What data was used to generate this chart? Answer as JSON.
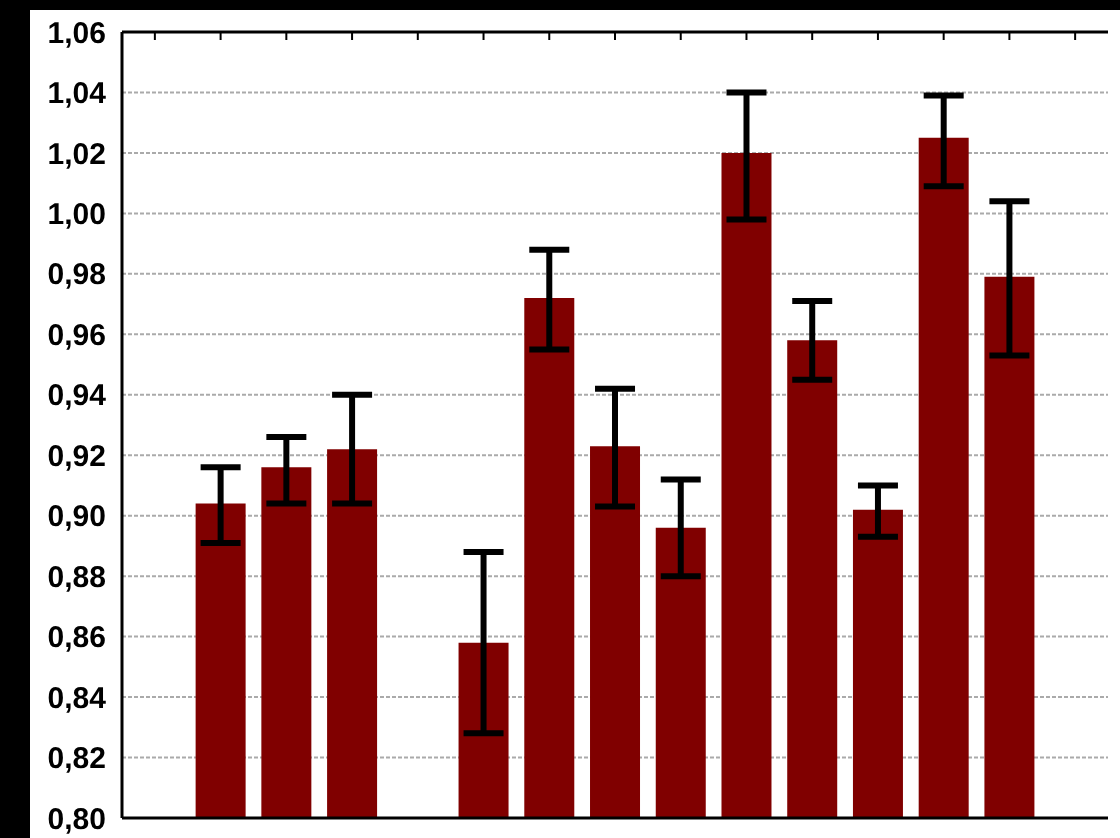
{
  "chart_data": {
    "type": "bar",
    "categories": [
      null,
      null,
      null,
      null,
      null,
      null,
      null,
      null,
      null,
      null,
      null,
      null,
      null,
      null,
      null
    ],
    "values": [
      null,
      0.904,
      0.916,
      0.922,
      null,
      0.858,
      0.972,
      0.923,
      0.896,
      1.02,
      0.958,
      0.902,
      1.025,
      0.979,
      null
    ],
    "errors": [
      null,
      [
        0.891,
        0.916
      ],
      [
        0.904,
        0.926
      ],
      [
        0.904,
        0.94
      ],
      null,
      [
        0.828,
        0.888
      ],
      [
        0.955,
        0.988
      ],
      [
        0.903,
        0.942
      ],
      [
        0.88,
        0.912
      ],
      [
        0.998,
        1.04
      ],
      [
        0.945,
        0.971
      ],
      [
        0.893,
        0.91
      ],
      [
        1.009,
        1.039
      ],
      [
        0.953,
        1.004
      ],
      null
    ],
    "color": "#800000",
    "ylim": [
      0.8,
      1.06
    ],
    "yticks": [
      {
        "value": 0.8,
        "label": "0,80"
      },
      {
        "value": 0.82,
        "label": "0,82"
      },
      {
        "value": 0.84,
        "label": "0,84"
      },
      {
        "value": 0.86,
        "label": "0,86"
      },
      {
        "value": 0.88,
        "label": "0,88"
      },
      {
        "value": 0.9,
        "label": "0,90"
      },
      {
        "value": 0.92,
        "label": "0,92"
      },
      {
        "value": 0.94,
        "label": "0,94"
      },
      {
        "value": 0.96,
        "label": "0,96"
      },
      {
        "value": 0.98,
        "label": "0,98"
      },
      {
        "value": 1.0,
        "label": "1,00"
      },
      {
        "value": 1.02,
        "label": "1,02"
      },
      {
        "value": 1.04,
        "label": "1,04"
      },
      {
        "value": 1.06,
        "label": "1,06"
      }
    ],
    "grid": "y",
    "tick_labels": "y"
  }
}
